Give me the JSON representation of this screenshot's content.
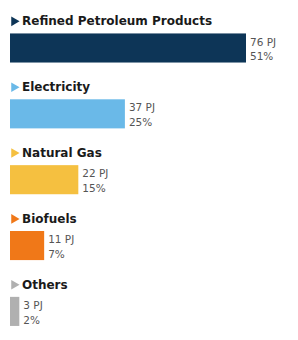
{
  "chart_data": {
    "type": "bar",
    "orientation": "horizontal",
    "categories": [
      "Refined Petroleum Products",
      "Electricity",
      "Natural Gas",
      "Biofuels",
      "Others"
    ],
    "values": [
      76,
      37,
      22,
      11,
      3
    ],
    "value_labels": [
      "76 PJ",
      "37 PJ",
      "22 PJ",
      "11 PJ",
      "3 PJ"
    ],
    "percentages": [
      51,
      25,
      15,
      7,
      2
    ],
    "percentage_labels": [
      "51%",
      "25%",
      "15%",
      "7%",
      "2%"
    ],
    "colors": [
      "#0d3557",
      "#6ab9e8",
      "#f5c040",
      "#f07818",
      "#b0b0b0"
    ],
    "tick_labels": false,
    "data_labels": true
  }
}
